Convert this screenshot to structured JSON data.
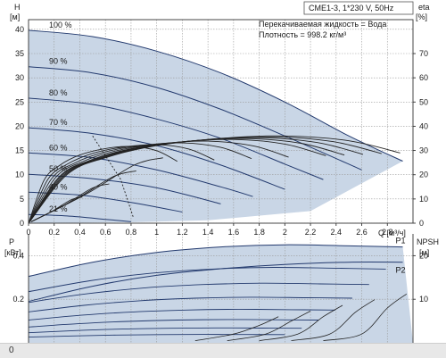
{
  "chart_data": [
    {
      "type": "line",
      "title": "CME1-3, 1*230 V, 50Hz",
      "annotations": [
        "Перекачиваемая жидкость = Вода",
        "Плотность = 998.2 кг/м³"
      ],
      "ylabel_name": "H",
      "ylabel_unit": "[м]",
      "y2label_name": "eta",
      "y2label_unit": "[%]",
      "xlabel": "Q [м³/ч]",
      "xlim": [
        0,
        3.0
      ],
      "ylim": [
        0,
        42
      ],
      "y2lim": [
        0,
        84
      ],
      "xticks": [
        "0",
        "0.2",
        "0.4",
        "0.6",
        "0.8",
        "1",
        "1.2",
        "1.4",
        "1.6",
        "1.8",
        "2",
        "2.2",
        "2.4",
        "2.6",
        "2.8"
      ],
      "xtick_values": [
        0,
        0.2,
        0.4,
        0.6,
        0.8,
        1.0,
        1.2,
        1.4,
        1.6,
        1.8,
        2.0,
        2.2,
        2.4,
        2.6,
        2.8
      ],
      "yticks": [
        "0",
        "5",
        "10",
        "15",
        "20",
        "25",
        "30",
        "35",
        "40"
      ],
      "y2ticks": [
        "0",
        "10",
        "20",
        "30",
        "40",
        "50",
        "60",
        "70"
      ],
      "grid": true,
      "series": [
        {
          "name": "100 %",
          "x": [
            0,
            0.5,
            1.0,
            1.5,
            2.0,
            2.5,
            2.92
          ],
          "values": [
            39.8,
            38.5,
            35.5,
            31.0,
            25.0,
            18.0,
            12.8
          ]
        },
        {
          "name": "90 %",
          "x": [
            0,
            0.5,
            1.0,
            1.5,
            2.0,
            2.6
          ],
          "values": [
            32.3,
            31.0,
            28.0,
            23.5,
            18.0,
            11.0
          ]
        },
        {
          "name": "80 %",
          "x": [
            0,
            0.5,
            1.0,
            1.5,
            2.0,
            2.3
          ],
          "values": [
            25.8,
            24.5,
            21.5,
            17.5,
            12.2,
            9.0
          ]
        },
        {
          "name": "70 %",
          "x": [
            0,
            0.5,
            1.0,
            1.5,
            2.0
          ],
          "values": [
            19.7,
            18.5,
            16.0,
            12.0,
            7.0
          ]
        },
        {
          "name": "60 %",
          "x": [
            0,
            0.5,
            1.0,
            1.5,
            1.75
          ],
          "values": [
            14.5,
            13.5,
            11.0,
            7.5,
            5.5
          ]
        },
        {
          "name": "50 %",
          "x": [
            0,
            0.5,
            1.0,
            1.5
          ],
          "values": [
            10.1,
            9.2,
            7.3,
            4.0
          ]
        },
        {
          "name": "40 %",
          "x": [
            0,
            0.4,
            0.8,
            1.2
          ],
          "values": [
            6.4,
            5.8,
            4.3,
            2.3
          ]
        },
        {
          "name": "21 %",
          "x": [
            0,
            0.3,
            0.6,
            0.8
          ],
          "values": [
            1.8,
            1.5,
            0.8,
            0.3
          ]
        }
      ],
      "efficiency_x": [
        0,
        0.3,
        0.6,
        1.0,
        1.5,
        2.0,
        2.5,
        2.9
      ],
      "efficiency_values": [
        0,
        20,
        27,
        32,
        35,
        36,
        34,
        29
      ]
    },
    {
      "type": "line",
      "ylabel_name": "P",
      "ylabel_unit": "[кВт]",
      "y2label": "NPSH",
      "y2label_unit": "[м]",
      "ylim": [
        0,
        0.5
      ],
      "y2lim": [
        0,
        25
      ],
      "yticks": [
        "0.2",
        "0.4"
      ],
      "y2ticks": [
        "10",
        "20"
      ],
      "grid": true,
      "series": [
        {
          "name": "P1",
          "x": [
            0,
            0.5,
            1.0,
            1.5,
            2.0,
            2.5,
            2.92
          ],
          "values": [
            0.305,
            0.37,
            0.415,
            0.44,
            0.45,
            0.445,
            0.44
          ]
        },
        {
          "name": "P2",
          "x": [
            0,
            0.5,
            1.0,
            1.5,
            2.0,
            2.5,
            2.92
          ],
          "values": [
            0.19,
            0.26,
            0.31,
            0.34,
            0.36,
            0.37,
            0.37
          ]
        }
      ]
    }
  ],
  "footer": {
    "label": "0"
  }
}
